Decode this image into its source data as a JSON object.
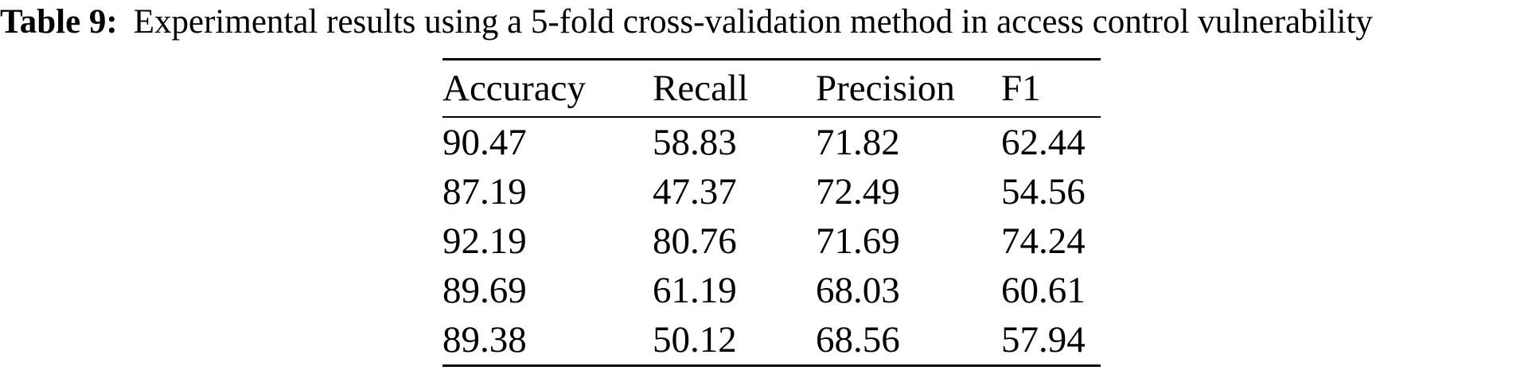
{
  "caption": {
    "label": "Table 9:",
    "text": "Experimental results using a 5-fold cross-validation method in access control vulnerability"
  },
  "table": {
    "columns": [
      "Accuracy",
      "Recall",
      "Precision",
      "F1"
    ],
    "rows": [
      [
        "90.47",
        "58.83",
        "71.82",
        "62.44"
      ],
      [
        "87.19",
        "47.37",
        "72.49",
        "54.56"
      ],
      [
        "92.19",
        "80.76",
        "71.69",
        "74.24"
      ],
      [
        "89.69",
        "61.19",
        "68.03",
        "60.61"
      ],
      [
        "89.38",
        "50.12",
        "68.56",
        "57.94"
      ]
    ]
  },
  "colors": {
    "text": "#000000",
    "background": "#ffffff",
    "rule": "#000000"
  }
}
